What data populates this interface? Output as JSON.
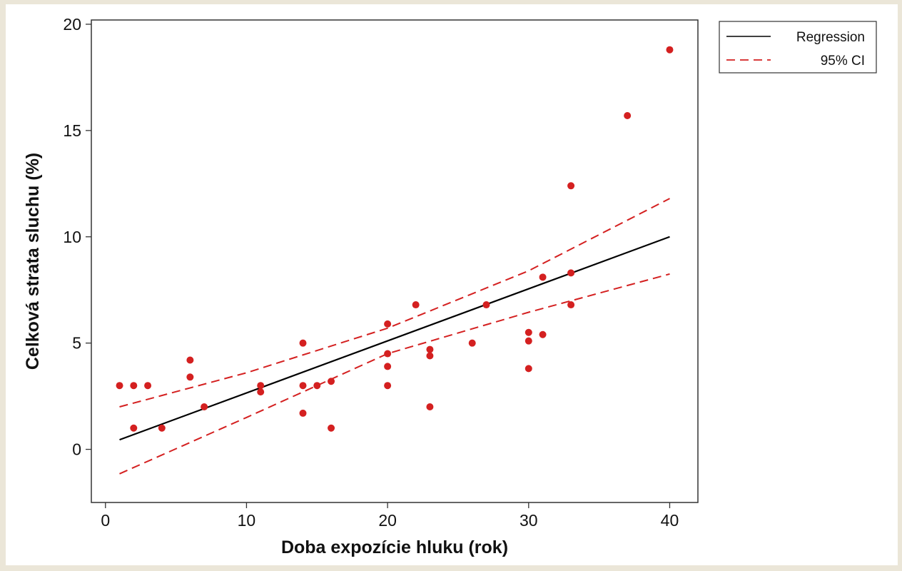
{
  "chart_data": {
    "type": "scatter",
    "xlabel": "Doba expozície hluku (rok)",
    "ylabel": "Celková strata sluchu (%)",
    "xlim": [
      -1,
      42
    ],
    "ylim": [
      -2.5,
      20.2
    ],
    "xticks": [
      0,
      10,
      20,
      30,
      40
    ],
    "yticks": [
      0,
      5,
      10,
      15,
      20
    ],
    "grid": false,
    "legend": {
      "position": "right",
      "entries": [
        {
          "label": "Regression",
          "style": "solid",
          "color": "#000000"
        },
        {
          "label": "95% CI",
          "style": "dashed",
          "color": "#d42020"
        }
      ]
    },
    "points": [
      [
        1,
        3.0
      ],
      [
        2,
        3.0
      ],
      [
        3,
        3.0
      ],
      [
        2,
        1.0
      ],
      [
        4,
        1.0
      ],
      [
        6,
        4.2
      ],
      [
        6,
        3.4
      ],
      [
        7,
        2.0
      ],
      [
        11,
        3.0
      ],
      [
        11,
        2.7
      ],
      [
        14,
        5.0
      ],
      [
        14,
        3.0
      ],
      [
        14,
        1.7
      ],
      [
        15,
        3.0
      ],
      [
        16,
        3.2
      ],
      [
        16,
        1.0
      ],
      [
        20,
        5.9
      ],
      [
        20,
        4.5
      ],
      [
        20,
        3.9
      ],
      [
        20,
        3.0
      ],
      [
        22,
        6.8
      ],
      [
        23,
        4.7
      ],
      [
        23,
        4.4
      ],
      [
        23,
        2.0
      ],
      [
        26,
        5.0
      ],
      [
        27,
        6.8
      ],
      [
        30,
        5.5
      ],
      [
        30,
        5.1
      ],
      [
        30,
        3.8
      ],
      [
        31,
        8.1
      ],
      [
        31,
        5.4
      ],
      [
        33,
        12.4
      ],
      [
        33,
        8.3
      ],
      [
        33,
        6.8
      ],
      [
        37,
        15.7
      ],
      [
        40,
        18.8
      ]
    ],
    "regression": {
      "x": [
        1,
        40
      ],
      "y": [
        0.45,
        10.0
      ]
    },
    "ci_upper": {
      "x": [
        1,
        10,
        20,
        30,
        40
      ],
      "y": [
        2.0,
        3.6,
        5.7,
        8.4,
        11.8
      ]
    },
    "ci_lower": {
      "x": [
        1,
        10,
        20,
        30,
        40
      ],
      "y": [
        -1.15,
        1.5,
        4.5,
        6.45,
        8.25
      ]
    }
  },
  "colors": {
    "background": "#ebe6d8",
    "plot_area": "#ffffff",
    "points": "#d42020",
    "regression": "#000000",
    "ci": "#d42020"
  }
}
